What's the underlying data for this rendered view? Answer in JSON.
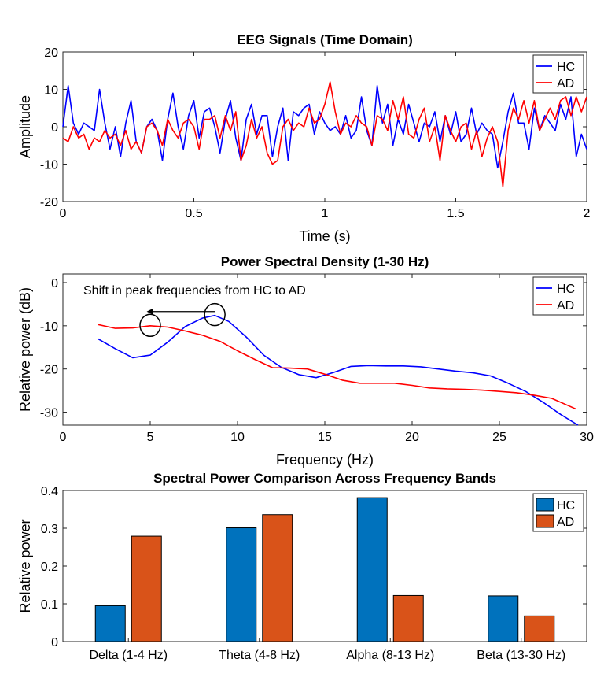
{
  "chart_data": [
    {
      "type": "line",
      "title": "EEG Signals (Time Domain)",
      "xlabel": "Time (s)",
      "ylabel": "Amplitude",
      "xlim": [
        0,
        2
      ],
      "ylim": [
        -20,
        20
      ],
      "xticks": [
        0,
        0.5,
        1,
        1.5,
        2
      ],
      "xtick_labels": [
        "0",
        "0.5",
        "1",
        "1.5",
        "2"
      ],
      "yticks": [
        -20,
        -10,
        0,
        10,
        20
      ],
      "ytick_labels": [
        "-20",
        "-10",
        "0",
        "10",
        "20"
      ],
      "legend_position": "top-right",
      "series": [
        {
          "name": "HC",
          "color": "#0000ff",
          "x": [
            0,
            0.02,
            0.04,
            0.06,
            0.08,
            0.1,
            0.12,
            0.14,
            0.16,
            0.18,
            0.2,
            0.22,
            0.24,
            0.26,
            0.28,
            0.3,
            0.32,
            0.34,
            0.36,
            0.38,
            0.4,
            0.42,
            0.44,
            0.46,
            0.48,
            0.5,
            0.52,
            0.54,
            0.56,
            0.58,
            0.6,
            0.62,
            0.64,
            0.66,
            0.68,
            0.7,
            0.72,
            0.74,
            0.76,
            0.78,
            0.8,
            0.82,
            0.84,
            0.86,
            0.88,
            0.9,
            0.92,
            0.94,
            0.96,
            0.98,
            1.0,
            1.02,
            1.04,
            1.06,
            1.08,
            1.1,
            1.12,
            1.14,
            1.16,
            1.18,
            1.2,
            1.22,
            1.24,
            1.26,
            1.28,
            1.3,
            1.32,
            1.34,
            1.36,
            1.38,
            1.4,
            1.42,
            1.44,
            1.46,
            1.48,
            1.5,
            1.52,
            1.54,
            1.56,
            1.58,
            1.6,
            1.62,
            1.64,
            1.66,
            1.68,
            1.7,
            1.72,
            1.74,
            1.76,
            1.78,
            1.8,
            1.82,
            1.84,
            1.86,
            1.88,
            1.9,
            1.92,
            1.94,
            1.96,
            1.98,
            2.0
          ],
          "y": [
            0,
            11,
            1,
            -2,
            1,
            0,
            -1,
            10,
            1,
            -6,
            0,
            -8,
            1,
            7,
            -4,
            -7,
            0,
            2,
            -1,
            -9,
            2,
            9,
            0,
            -6,
            3,
            7,
            -3,
            4,
            5,
            0,
            -7,
            2,
            7,
            -3,
            -9,
            2,
            6,
            -2,
            3,
            3,
            -8,
            0,
            5,
            -9,
            4,
            3,
            5,
            6,
            -2,
            4,
            1,
            -1,
            0,
            -2,
            3,
            -3,
            -1,
            8,
            -1,
            -5,
            11,
            1,
            6,
            -5,
            2,
            -2,
            6,
            1,
            -4,
            1,
            0,
            4,
            -4,
            3,
            -2,
            4,
            -4,
            -2,
            5,
            -2,
            1,
            -1,
            -2,
            -11,
            -4,
            4,
            9,
            1,
            1,
            -6,
            5,
            -1,
            3,
            1,
            -1,
            6,
            2,
            8,
            -8,
            -2,
            -6
          ]
        },
        {
          "name": "AD",
          "color": "#ff0000",
          "x": [
            0,
            0.02,
            0.04,
            0.06,
            0.08,
            0.1,
            0.12,
            0.14,
            0.16,
            0.18,
            0.2,
            0.22,
            0.24,
            0.26,
            0.28,
            0.3,
            0.32,
            0.34,
            0.36,
            0.38,
            0.4,
            0.42,
            0.44,
            0.46,
            0.48,
            0.5,
            0.52,
            0.54,
            0.56,
            0.58,
            0.6,
            0.62,
            0.64,
            0.66,
            0.68,
            0.7,
            0.72,
            0.74,
            0.76,
            0.78,
            0.8,
            0.82,
            0.84,
            0.86,
            0.88,
            0.9,
            0.92,
            0.94,
            0.96,
            0.98,
            1.0,
            1.02,
            1.04,
            1.06,
            1.08,
            1.1,
            1.12,
            1.14,
            1.16,
            1.18,
            1.2,
            1.22,
            1.24,
            1.26,
            1.28,
            1.3,
            1.32,
            1.34,
            1.36,
            1.38,
            1.4,
            1.42,
            1.44,
            1.46,
            1.48,
            1.5,
            1.52,
            1.54,
            1.56,
            1.58,
            1.6,
            1.62,
            1.64,
            1.66,
            1.68,
            1.7,
            1.72,
            1.74,
            1.76,
            1.78,
            1.8,
            1.82,
            1.84,
            1.86,
            1.88,
            1.9,
            1.92,
            1.94,
            1.96,
            1.98,
            2.0
          ],
          "y": [
            -3,
            -4,
            0,
            -3,
            -2,
            -6,
            -3,
            -4,
            -1,
            -3,
            -2,
            -5,
            -1,
            -6,
            -4,
            -7,
            0,
            1,
            -1,
            -5,
            2,
            -1,
            -3,
            1,
            2,
            0,
            -6,
            2,
            2,
            3,
            -3,
            3,
            -1,
            4,
            -9,
            -5,
            2,
            -3,
            0,
            -7,
            -10,
            -9,
            0,
            2,
            -1,
            1,
            0,
            5,
            1,
            2,
            6,
            12,
            4,
            -2,
            1,
            0,
            3,
            1,
            0,
            -5,
            3,
            2,
            -1,
            7,
            2,
            8,
            -2,
            -3,
            2,
            5,
            -4,
            0,
            -9,
            3,
            -1,
            -4,
            0,
            1,
            -6,
            -1,
            -8,
            -3,
            0,
            -4,
            -16,
            -1,
            5,
            2,
            7,
            1,
            7,
            -1,
            2,
            5,
            2,
            7,
            8,
            3,
            8,
            4,
            8
          ]
        }
      ]
    },
    {
      "type": "line",
      "title": "Power Spectral Density (1-30 Hz)",
      "xlabel": "Frequency (Hz)",
      "ylabel": "Relative power (dB)",
      "xlim": [
        0,
        30
      ],
      "ylim": [
        -33,
        2
      ],
      "xticks": [
        0,
        5,
        10,
        15,
        20,
        25,
        30
      ],
      "xtick_labels": [
        "0",
        "5",
        "10",
        "15",
        "20",
        "25",
        "30"
      ],
      "yticks": [
        -30,
        -20,
        -10,
        0
      ],
      "ytick_labels": [
        "-30",
        "-20",
        "-10",
        "0"
      ],
      "legend_position": "top-right",
      "annotation": {
        "text": "Shift in peak frequencies from HC to AD",
        "arrow_from": [
          8.7,
          -6.7
        ],
        "arrow_to": [
          4.8,
          -6.7
        ],
        "circles": [
          [
            5.0,
            -9.9
          ],
          [
            8.7,
            -7.4
          ]
        ]
      },
      "series": [
        {
          "name": "HC",
          "color": "#0000ff",
          "x": [
            2,
            3,
            4,
            5,
            6,
            7,
            8,
            8.7,
            9.5,
            10.5,
            11.5,
            12.5,
            13.5,
            14.5,
            15.5,
            16.5,
            17.5,
            18.5,
            19.5,
            20.5,
            21.5,
            22.5,
            23.5,
            24.5,
            25.5,
            26.5,
            27.5,
            28.5,
            29.5
          ],
          "y": [
            -13,
            -15.3,
            -17.4,
            -16.8,
            -13.8,
            -10.2,
            -8.2,
            -7.6,
            -9.0,
            -12.6,
            -16.8,
            -19.6,
            -21.3,
            -22.0,
            -20.8,
            -19.4,
            -19.2,
            -19.3,
            -19.3,
            -19.5,
            -20.0,
            -20.5,
            -20.9,
            -21.6,
            -23.3,
            -25.2,
            -27.7,
            -30.5,
            -33.0
          ]
        },
        {
          "name": "AD",
          "color": "#ff0000",
          "x": [
            2,
            3,
            4,
            5,
            6,
            7,
            8,
            9,
            10,
            11,
            12,
            13,
            14,
            15,
            16,
            17,
            18,
            19,
            20,
            21,
            22,
            23,
            24,
            25,
            26,
            27,
            28,
            29.4
          ],
          "y": [
            -9.7,
            -10.6,
            -10.5,
            -10.0,
            -10.3,
            -11.2,
            -12.2,
            -13.6,
            -15.8,
            -17.8,
            -19.7,
            -19.8,
            -20.0,
            -21.2,
            -22.6,
            -23.3,
            -23.3,
            -23.3,
            -23.8,
            -24.4,
            -24.6,
            -24.7,
            -24.9,
            -25.2,
            -25.5,
            -26.1,
            -26.8,
            -29.3
          ]
        }
      ]
    },
    {
      "type": "bar",
      "title": "Spectral Power Comparison Across Frequency Bands",
      "xlabel": "",
      "ylabel": "Relative power",
      "ylim": [
        0,
        0.4
      ],
      "yticks": [
        0,
        0.1,
        0.2,
        0.3,
        0.4
      ],
      "ytick_labels": [
        "0",
        "0.1",
        "0.2",
        "0.3",
        "0.4"
      ],
      "legend_position": "top-right",
      "categories": [
        "Delta (1-4 Hz)",
        "Theta (4-8 Hz)",
        "Alpha (8-13 Hz)",
        "Beta (13-30 Hz)"
      ],
      "series": [
        {
          "name": "HC",
          "color": "#0072bd",
          "values": [
            0.095,
            0.301,
            0.381,
            0.121
          ]
        },
        {
          "name": "AD",
          "color": "#d95319",
          "values": [
            0.279,
            0.336,
            0.122,
            0.068
          ]
        }
      ]
    }
  ]
}
